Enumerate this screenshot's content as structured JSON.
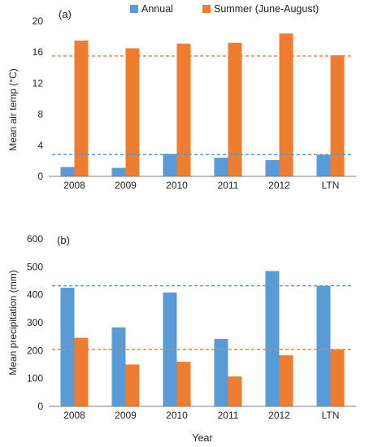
{
  "colors": {
    "annual": "#5b9bd5",
    "summer": "#ed7d31",
    "axis": "#7f7f7f",
    "text": "#222222"
  },
  "legend": {
    "annual": "Annual",
    "summer": "Summer (June-August)"
  },
  "xlabel": "Year",
  "chart_data": [
    {
      "type": "bar",
      "panel_label": "(a)",
      "ylabel": "Mean air temp (°C)",
      "ylim": [
        0,
        20
      ],
      "yticks": [
        0,
        4,
        8,
        12,
        16,
        20
      ],
      "categories": [
        "2008",
        "2009",
        "2010",
        "2011",
        "2012",
        "LTN"
      ],
      "series": [
        {
          "name": "Annual",
          "values": [
            1.2,
            1.1,
            2.9,
            2.4,
            2.1,
            2.8
          ]
        },
        {
          "name": "Summer (June-August)",
          "values": [
            17.5,
            16.5,
            17.1,
            17.2,
            18.4,
            15.6
          ]
        }
      ],
      "reference_lines": [
        {
          "series": "Annual",
          "value": 2.8
        },
        {
          "series": "Summer (June-August)",
          "value": 15.5
        }
      ],
      "grid": false
    },
    {
      "type": "bar",
      "panel_label": "(b)",
      "ylabel": "Mean precipitation (mm)",
      "ylim": [
        0,
        600
      ],
      "yticks": [
        0,
        100,
        200,
        300,
        400,
        500,
        600
      ],
      "categories": [
        "2008",
        "2009",
        "2010",
        "2011",
        "2012",
        "LTN"
      ],
      "series": [
        {
          "name": "Annual",
          "values": [
            425,
            283,
            408,
            242,
            485,
            432
          ]
        },
        {
          "name": "Summer (June-August)",
          "values": [
            246,
            150,
            160,
            107,
            183,
            204
          ]
        }
      ],
      "reference_lines": [
        {
          "series": "Annual",
          "value": 432
        },
        {
          "series": "Summer (June-August)",
          "value": 204
        }
      ],
      "grid": false
    }
  ]
}
